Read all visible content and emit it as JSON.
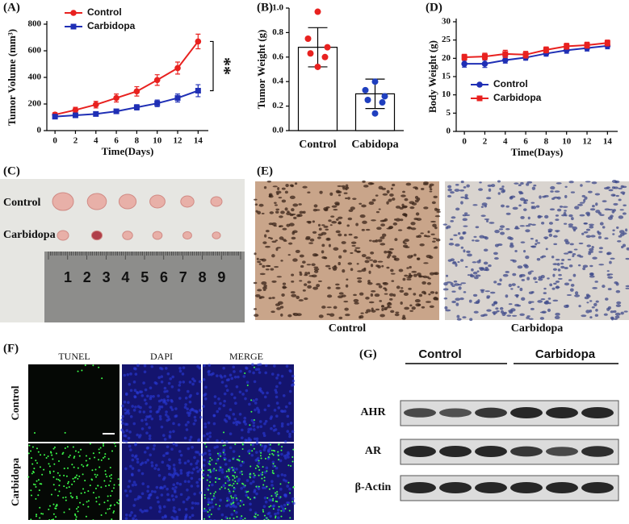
{
  "panel_labels": [
    "(A)",
    "(B)",
    "(C)",
    "(D)",
    "(E)",
    "(F)",
    "(G)"
  ],
  "chart_data": [
    {
      "type": "line",
      "ylabel": "Tumor Volume (mm³)",
      "xlabel": "Time(Days)",
      "x": [
        0,
        2,
        4,
        6,
        8,
        10,
        12,
        14
      ],
      "xlim": [
        -0.8,
        15
      ],
      "xticks": [
        0,
        2,
        4,
        6,
        8,
        10,
        12,
        14
      ],
      "ylim": [
        0,
        800
      ],
      "yticks": [
        0,
        200,
        400,
        600,
        800
      ],
      "legend": "upper left",
      "annotation": "**",
      "series": [
        {
          "name": "Control",
          "color": "#e8211f",
          "marker": "circle",
          "values": [
            120,
            155,
            195,
            245,
            295,
            380,
            470,
            670
          ],
          "errors": [
            15,
            20,
            25,
            30,
            35,
            40,
            45,
            55
          ]
        },
        {
          "name": "Carbidopa",
          "color": "#1f2fb5",
          "marker": "square",
          "values": [
            105,
            115,
            125,
            145,
            175,
            205,
            245,
            300
          ],
          "errors": [
            10,
            12,
            12,
            15,
            20,
            25,
            30,
            45
          ]
        }
      ]
    },
    {
      "type": "bar",
      "ylabel": "Tumor Weight (g)",
      "categories": [
        "Control",
        "Cabidopa"
      ],
      "values": [
        0.68,
        0.3
      ],
      "errors": [
        0.16,
        0.12
      ],
      "color": "#ffffff",
      "point_colors": [
        "#e8211f",
        "#1f3fbf"
      ],
      "points": [
        [
          0.97,
          0.75,
          0.68,
          0.63,
          0.6,
          0.52
        ],
        [
          0.4,
          0.33,
          0.28,
          0.25,
          0.23,
          0.14
        ]
      ],
      "ylim": [
        0,
        1
      ],
      "yticks": [
        {
          "value": 0,
          "label": "0.0"
        },
        0.2,
        0.4,
        0.6,
        0.8,
        {
          "value": 1,
          "label": "1.0"
        }
      ]
    },
    {
      "type": "line",
      "ylabel": "Body Weight (g)",
      "xlabel": "Time(Days)",
      "x": [
        0,
        2,
        4,
        6,
        8,
        10,
        12,
        14
      ],
      "xlim": [
        -0.8,
        15
      ],
      "xticks": [
        0,
        2,
        4,
        6,
        8,
        10,
        12,
        14
      ],
      "ylim": [
        0,
        30
      ],
      "yticks": [
        0,
        5,
        10,
        15,
        20,
        25,
        30
      ],
      "legend": "center",
      "series": [
        {
          "name": "Control",
          "color": "#1f2fb5",
          "marker": "circle",
          "values": [
            18.5,
            18.5,
            19.5,
            20.2,
            21.3,
            22.2,
            22.8,
            23.4
          ],
          "errors": [
            0.9,
            1,
            0.8,
            0.7,
            0.7,
            0.8,
            0.8,
            0.8
          ]
        },
        {
          "name": "Carbidopa",
          "color": "#e8211f",
          "marker": "square",
          "values": [
            20.3,
            20.5,
            21.2,
            21,
            22.3,
            23.3,
            23.6,
            24.2
          ],
          "errors": [
            0.8,
            0.9,
            1,
            0.9,
            0.8,
            0.8,
            0.8,
            0.8
          ]
        }
      ]
    }
  ],
  "photo_c": {
    "row_labels": [
      "Control",
      "Carbidopa"
    ],
    "ruler_numbers": [
      "1",
      "2",
      "3",
      "4",
      "5",
      "6",
      "7",
      "8",
      "9"
    ]
  },
  "histology_e": {
    "labels": [
      "Control",
      "Carbidopa"
    ]
  },
  "tunel_f": {
    "columns": [
      "TUNEL",
      "DAPI",
      "MERGE"
    ],
    "rows": [
      "Control",
      "Carbidopa"
    ]
  },
  "western_g": {
    "groups": [
      "Control",
      "Carbidopa"
    ],
    "proteins": [
      "AHR",
      "AR",
      "β-Actin"
    ]
  }
}
